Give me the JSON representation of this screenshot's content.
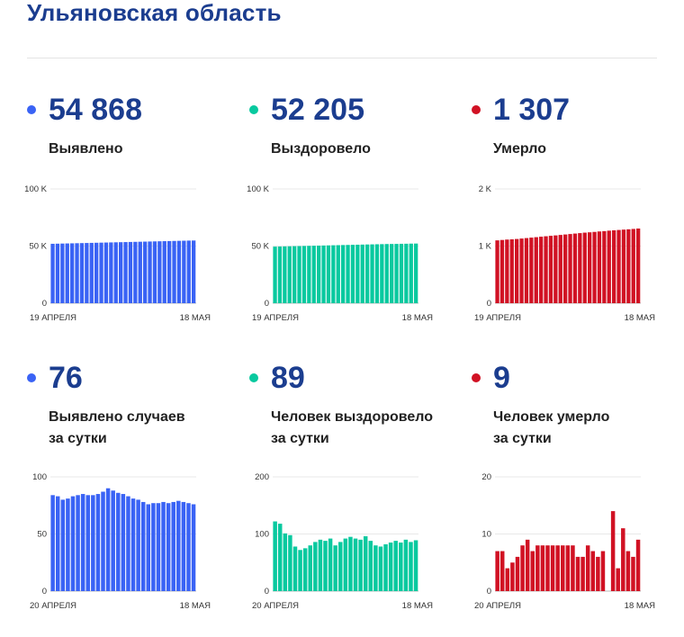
{
  "page_title": "Ульяновская область",
  "colors": {
    "blue": "#3a63f5",
    "green": "#08c99f",
    "red": "#d11224",
    "title": "#1b3d8f"
  },
  "panels": [
    {
      "id": "detected-total",
      "color": "#3a63f5",
      "value": "54 868",
      "label_lines": [
        "Выявлено"
      ]
    },
    {
      "id": "recovered-total",
      "color": "#08c99f",
      "value": "52 205",
      "label_lines": [
        "Выздоровело"
      ]
    },
    {
      "id": "died-total",
      "color": "#d11224",
      "value": "1 307",
      "label_lines": [
        "Умерло"
      ]
    },
    {
      "id": "detected-daily",
      "color": "#3a63f5",
      "value": "76",
      "label_lines": [
        "Выявлено случаев",
        "за сутки"
      ]
    },
    {
      "id": "recovered-daily",
      "color": "#08c99f",
      "value": "89",
      "label_lines": [
        "Человек выздоровело",
        "за сутки"
      ]
    },
    {
      "id": "died-daily",
      "color": "#d11224",
      "value": "9",
      "label_lines": [
        "Человек умерло",
        "за сутки"
      ]
    }
  ],
  "chart_data": [
    {
      "type": "bar",
      "color": "#3a63f5",
      "ylim": [
        0,
        100000
      ],
      "yticks": [
        0,
        50000,
        100000
      ],
      "ytick_labels": [
        "0",
        "50 K",
        "100 K"
      ],
      "x_start_label": "19 АПРЕЛЯ",
      "x_end_label": "18 МАЯ",
      "values": [
        52000,
        52100,
        52200,
        52300,
        52400,
        52500,
        52600,
        52700,
        52800,
        52900,
        53000,
        53100,
        53200,
        53300,
        53400,
        53500,
        53600,
        53700,
        53800,
        53900,
        54000,
        54100,
        54200,
        54300,
        54400,
        54500,
        54600,
        54700,
        54800,
        54868
      ]
    },
    {
      "type": "bar",
      "color": "#08c99f",
      "ylim": [
        0,
        100000
      ],
      "yticks": [
        0,
        50000,
        100000
      ],
      "ytick_labels": [
        "0",
        "50 K",
        "100 K"
      ],
      "x_start_label": "19 АПРЕЛЯ",
      "x_end_label": "18 МАЯ",
      "values": [
        49500,
        49600,
        49700,
        49800,
        49900,
        50000,
        50100,
        50200,
        50300,
        50400,
        50500,
        50600,
        50700,
        50800,
        50900,
        51000,
        51100,
        51200,
        51300,
        51400,
        51500,
        51600,
        51700,
        51800,
        51850,
        51900,
        52000,
        52050,
        52150,
        52205
      ]
    },
    {
      "type": "bar",
      "color": "#d11224",
      "ylim": [
        0,
        2000
      ],
      "yticks": [
        0,
        1000,
        2000
      ],
      "ytick_labels": [
        "0",
        "1 K",
        "2 K"
      ],
      "x_start_label": "19 АПРЕЛЯ",
      "x_end_label": "18 МАЯ",
      "values": [
        1100,
        1107,
        1114,
        1118,
        1124,
        1132,
        1140,
        1148,
        1156,
        1164,
        1172,
        1180,
        1187,
        1195,
        1203,
        1211,
        1219,
        1227,
        1235,
        1241,
        1248,
        1256,
        1262,
        1270,
        1276,
        1282,
        1288,
        1294,
        1300,
        1307
      ]
    },
    {
      "type": "bar",
      "color": "#3a63f5",
      "ylim": [
        0,
        100
      ],
      "yticks": [
        0,
        50,
        100
      ],
      "ytick_labels": [
        "0",
        "50",
        "100"
      ],
      "x_start_label": "20 АПРЕЛЯ",
      "x_end_label": "18 МАЯ",
      "values": [
        84,
        83,
        80,
        81,
        83,
        84,
        85,
        84,
        84,
        85,
        87,
        90,
        88,
        86,
        85,
        83,
        81,
        80,
        78,
        76,
        77,
        77,
        78,
        77,
        78,
        79,
        78,
        77,
        76
      ]
    },
    {
      "type": "bar",
      "color": "#08c99f",
      "ylim": [
        0,
        200
      ],
      "yticks": [
        0,
        100,
        200
      ],
      "ytick_labels": [
        "0",
        "100",
        "200"
      ],
      "x_start_label": "20 АПРЕЛЯ",
      "x_end_label": "18 МАЯ",
      "values": [
        122,
        118,
        101,
        98,
        78,
        72,
        75,
        80,
        86,
        90,
        88,
        92,
        80,
        86,
        92,
        95,
        92,
        90,
        96,
        88,
        80,
        78,
        82,
        85,
        88,
        85,
        90,
        86,
        89
      ]
    },
    {
      "type": "bar",
      "color": "#d11224",
      "ylim": [
        0,
        20
      ],
      "yticks": [
        0,
        10,
        20
      ],
      "ytick_labels": [
        "0",
        "10",
        "20"
      ],
      "x_start_label": "20 АПРЕЛЯ",
      "x_end_label": "18 МАЯ",
      "values": [
        7,
        7,
        4,
        5,
        6,
        8,
        9,
        7,
        8,
        8,
        8,
        8,
        8,
        8,
        8,
        8,
        6,
        6,
        8,
        7,
        6,
        7,
        0,
        14,
        4,
        11,
        7,
        6,
        9
      ]
    }
  ]
}
